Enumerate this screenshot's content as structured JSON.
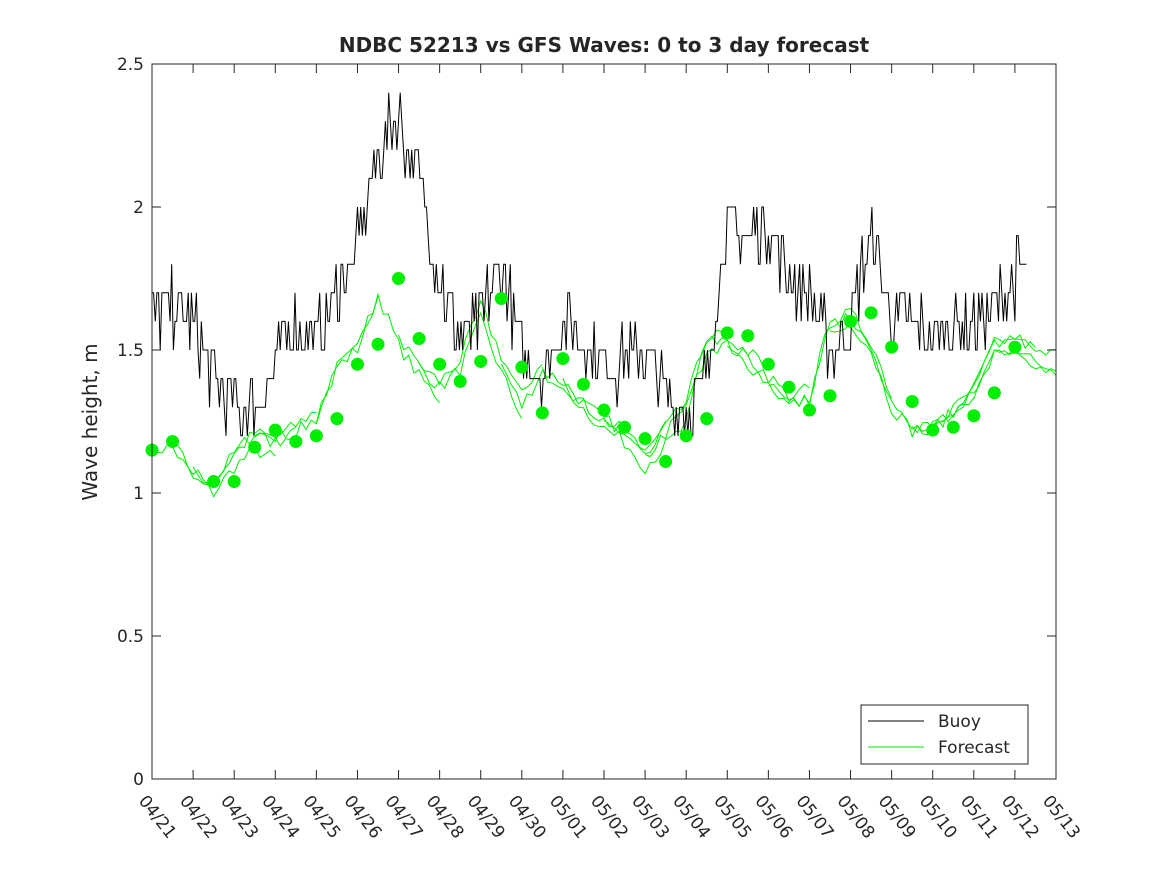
{
  "chart_data": {
    "type": "line",
    "title": "NDBC 52213 vs GFS Waves: 0 to 3 day forecast",
    "xlabel": "",
    "ylabel": "Wave height, m",
    "x_unit": "days",
    "x_range": [
      0,
      22
    ],
    "xlim": [
      "04/21",
      "05/13"
    ],
    "ylim": [
      0,
      2.5
    ],
    "grid": false,
    "legend_location": "lower-right",
    "x_ticks": [
      "04/21",
      "04/22",
      "04/23",
      "04/24",
      "04/25",
      "04/26",
      "04/27",
      "04/28",
      "04/29",
      "04/30",
      "05/01",
      "05/02",
      "05/03",
      "05/04",
      "05/05",
      "05/06",
      "05/07",
      "05/08",
      "05/09",
      "05/10",
      "05/11",
      "05/12",
      "05/13"
    ],
    "y_ticks": [
      "0",
      "0.5",
      "1",
      "1.5",
      "2",
      "2.5"
    ],
    "colors": {
      "buoy": "#000000",
      "forecast": "#00ee00",
      "axes": "#262626"
    },
    "series": [
      {
        "name": "Buoy",
        "style": "thin-line",
        "x": [
          0,
          0.5,
          1,
          1.5,
          2,
          2.5,
          3,
          3.5,
          4,
          4.5,
          5,
          5.5,
          6,
          6.5,
          7,
          7.5,
          8,
          8.5,
          9,
          9.5,
          10,
          10.5,
          11,
          11.5,
          12,
          12.5,
          13,
          13.5,
          14,
          14.5,
          15,
          15.5,
          16,
          16.5,
          17,
          17.5,
          18,
          18.5,
          19,
          19.5,
          20,
          20.5,
          21,
          21.3
        ],
        "y": [
          1.6,
          1.65,
          1.6,
          1.4,
          1.3,
          1.3,
          1.45,
          1.6,
          1.55,
          1.7,
          1.85,
          2.2,
          2.3,
          2.1,
          1.75,
          1.55,
          1.6,
          1.8,
          1.5,
          1.4,
          1.6,
          1.55,
          1.45,
          1.45,
          1.5,
          1.35,
          1.3,
          1.4,
          1.95,
          1.9,
          1.95,
          1.75,
          1.7,
          1.5,
          1.6,
          1.9,
          1.6,
          1.6,
          1.55,
          1.6,
          1.6,
          1.65,
          1.75,
          1.8
        ]
      },
      {
        "name": "Forecast",
        "style": "ensemble-lines",
        "x": [
          0,
          0.5,
          1,
          1.5,
          2,
          2.5,
          3,
          3.5,
          4,
          4.5,
          5,
          5.5,
          6,
          6.5,
          7,
          7.5,
          8,
          8.5,
          9,
          9.5,
          10,
          10.5,
          11,
          11.5,
          12,
          12.5,
          13,
          13.5,
          14,
          14.5,
          15,
          15.5,
          16,
          16.5,
          17,
          17.5,
          18,
          18.5,
          19,
          19.5,
          20,
          20.5,
          21,
          21.5,
          22
        ],
        "y": [
          1.15,
          1.17,
          1.07,
          1.03,
          1.13,
          1.2,
          1.18,
          1.22,
          1.27,
          1.45,
          1.52,
          1.72,
          1.55,
          1.45,
          1.38,
          1.45,
          1.63,
          1.45,
          1.3,
          1.42,
          1.38,
          1.3,
          1.24,
          1.2,
          1.12,
          1.2,
          1.28,
          1.5,
          1.5,
          1.45,
          1.38,
          1.3,
          1.32,
          1.58,
          1.6,
          1.5,
          1.3,
          1.22,
          1.23,
          1.28,
          1.35,
          1.5,
          1.52,
          1.47,
          1.45
        ]
      },
      {
        "name": "",
        "style": "markers",
        "x": [
          0,
          0.5,
          1.5,
          2,
          2.5,
          3,
          3.5,
          4,
          4.5,
          5,
          5.5,
          6,
          6.5,
          7,
          7.5,
          8,
          8.5,
          9,
          9.5,
          10,
          10.5,
          11,
          11.5,
          12,
          12.5,
          13,
          13.5,
          14,
          14.5,
          15,
          15.5,
          16,
          16.5,
          17,
          17.5,
          18,
          18.5,
          19,
          19.5,
          20,
          20.5,
          21
        ],
        "y": [
          1.15,
          1.18,
          1.04,
          1.04,
          1.16,
          1.22,
          1.18,
          1.2,
          1.26,
          1.45,
          1.52,
          1.75,
          1.54,
          1.45,
          1.39,
          1.46,
          1.68,
          1.44,
          1.28,
          1.47,
          1.38,
          1.29,
          1.23,
          1.19,
          1.11,
          1.2,
          1.26,
          1.56,
          1.55,
          1.45,
          1.37,
          1.29,
          1.34,
          1.6,
          1.63,
          1.51,
          1.32,
          1.22,
          1.23,
          1.27,
          1.35,
          1.51
        ]
      }
    ],
    "legend": [
      "Buoy",
      "Forecast"
    ]
  }
}
